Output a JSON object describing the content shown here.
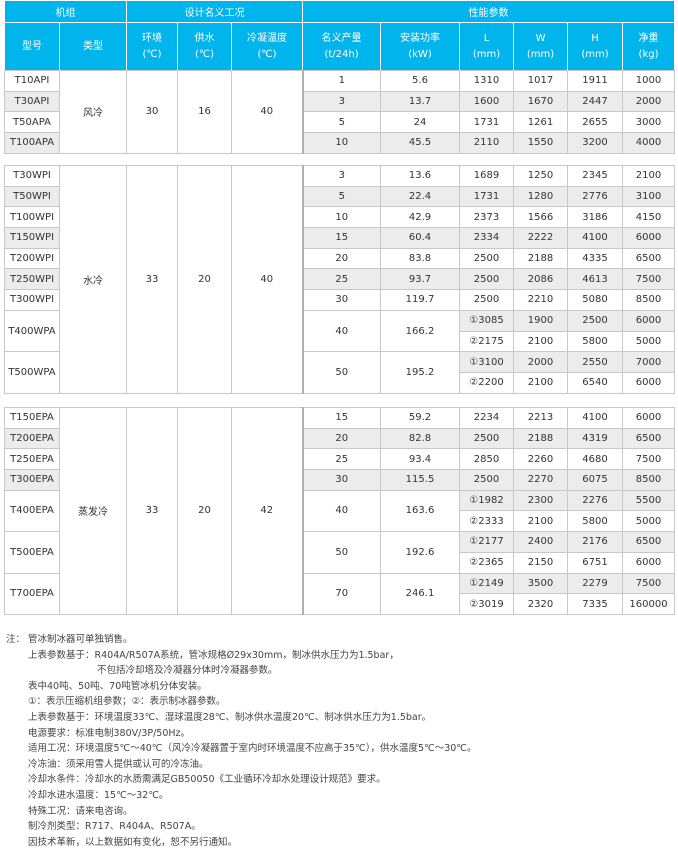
{
  "header": {
    "group_unit": "机组",
    "group_design": "设计名义工况",
    "group_perf": "性能参数",
    "cols": [
      {
        "name": "型号",
        "unit": ""
      },
      {
        "name": "类型",
        "unit": ""
      },
      {
        "name": "环境",
        "unit": "(℃)"
      },
      {
        "name": "供水",
        "unit": "(℃)"
      },
      {
        "name": "冷凝温度",
        "unit": "(℃)"
      },
      {
        "name": "名义产量",
        "unit": "(t/24h)"
      },
      {
        "name": "安装功率",
        "unit": "(kW)"
      },
      {
        "name": "L",
        "unit": "(mm)"
      },
      {
        "name": "W",
        "unit": "(mm)"
      },
      {
        "name": "H",
        "unit": "(mm)"
      },
      {
        "name": "净重",
        "unit": "(kg)"
      }
    ]
  },
  "sections": [
    {
      "type": "风冷",
      "ambient": "30",
      "supply": "16",
      "condense": "40",
      "rows": [
        {
          "model": "T10API",
          "capacity": "1",
          "power": "5.6",
          "sub": [
            [
              "1310",
              "1017",
              "1911",
              "1000"
            ]
          ]
        },
        {
          "model": "T30API",
          "capacity": "3",
          "power": "13.7",
          "sub": [
            [
              "1600",
              "1670",
              "2447",
              "2000"
            ]
          ]
        },
        {
          "model": "T50APA",
          "capacity": "5",
          "power": "24",
          "sub": [
            [
              "1731",
              "1261",
              "2655",
              "3000"
            ]
          ]
        },
        {
          "model": "T100APA",
          "capacity": "10",
          "power": "45.5",
          "sub": [
            [
              "2110",
              "1550",
              "3200",
              "4000"
            ]
          ]
        }
      ]
    },
    {
      "type": "水冷",
      "ambient": "33",
      "supply": "20",
      "condense": "40",
      "rows": [
        {
          "model": "T30WPI",
          "capacity": "3",
          "power": "13.6",
          "sub": [
            [
              "1689",
              "1250",
              "2345",
              "2100"
            ]
          ]
        },
        {
          "model": "T50WPI",
          "capacity": "5",
          "power": "22.4",
          "sub": [
            [
              "1731",
              "1280",
              "2776",
              "3100"
            ]
          ]
        },
        {
          "model": "T100WPI",
          "capacity": "10",
          "power": "42.9",
          "sub": [
            [
              "2373",
              "1566",
              "3186",
              "4150"
            ]
          ]
        },
        {
          "model": "T150WPI",
          "capacity": "15",
          "power": "60.4",
          "sub": [
            [
              "2334",
              "2222",
              "4100",
              "6000"
            ]
          ]
        },
        {
          "model": "T200WPI",
          "capacity": "20",
          "power": "83.8",
          "sub": [
            [
              "2500",
              "2188",
              "4335",
              "6500"
            ]
          ]
        },
        {
          "model": "T250WPI",
          "capacity": "25",
          "power": "93.7",
          "sub": [
            [
              "2500",
              "2086",
              "4613",
              "7500"
            ]
          ]
        },
        {
          "model": "T300WPI",
          "capacity": "30",
          "power": "119.7",
          "sub": [
            [
              "2500",
              "2210",
              "5080",
              "8500"
            ]
          ]
        },
        {
          "model": "T400WPA",
          "capacity": "40",
          "power": "166.2",
          "sub": [
            [
              "①3085",
              "1900",
              "2500",
              "6000"
            ],
            [
              "②2175",
              "2100",
              "5800",
              "5000"
            ]
          ]
        },
        {
          "model": "T500WPA",
          "capacity": "50",
          "power": "195.2",
          "sub": [
            [
              "①3100",
              "2000",
              "2550",
              "7000"
            ],
            [
              "②2200",
              "2100",
              "6540",
              "6000"
            ]
          ]
        }
      ]
    },
    {
      "type": "蒸发冷",
      "ambient": "33",
      "supply": "20",
      "condense": "42",
      "rows": [
        {
          "model": "T150EPA",
          "capacity": "15",
          "power": "59.2",
          "sub": [
            [
              "2234",
              "2213",
              "4100",
              "6000"
            ]
          ]
        },
        {
          "model": "T200EPA",
          "capacity": "20",
          "power": "82.8",
          "sub": [
            [
              "2500",
              "2188",
              "4319",
              "6500"
            ]
          ]
        },
        {
          "model": "T250EPA",
          "capacity": "25",
          "power": "93.4",
          "sub": [
            [
              "2850",
              "2260",
              "4680",
              "7500"
            ]
          ]
        },
        {
          "model": "T300EPA",
          "capacity": "30",
          "power": "115.5",
          "sub": [
            [
              "2500",
              "2270",
              "6075",
              "8500"
            ]
          ]
        },
        {
          "model": "T400EPA",
          "capacity": "40",
          "power": "163.6",
          "sub": [
            [
              "①1982",
              "2300",
              "2276",
              "5500"
            ],
            [
              "②2333",
              "2100",
              "5800",
              "5000"
            ]
          ]
        },
        {
          "model": "T500EPA",
          "capacity": "50",
          "power": "192.6",
          "sub": [
            [
              "①2177",
              "2400",
              "2176",
              "6500"
            ],
            [
              "②2365",
              "2150",
              "6751",
              "6000"
            ]
          ]
        },
        {
          "model": "T700EPA",
          "capacity": "70",
          "power": "246.1",
          "sub": [
            [
              "①2149",
              "3500",
              "2279",
              "7500"
            ],
            [
              "②3019",
              "2320",
              "7335",
              "160000"
            ]
          ]
        }
      ]
    }
  ],
  "notes": {
    "label": "注：",
    "lines": [
      "管冰制冰器可单独销售。",
      "上表参数基于：R404A/R507A系统，管冰规格Ø29x30mm，制冰供水压力为1.5bar，",
      "不包括冷却塔及冷凝器分体时冷凝器参数。",
      "表中40吨、50吨、70吨管冰机分体安装。",
      "①：表示压缩机组参数；②：表示制冰器参数。",
      "上表参数基于：环境温度33℃、湿球温度28℃、制冰供水温度20℃、制冰供水压力为1.5bar。",
      "电源要求：标准电制380V/3P/50Hz。",
      "适用工况：环境温度5℃～40℃（风冷冷凝器置于室内时环境温度不应高于35℃），供水温度5℃～30℃。",
      "冷冻油：须采用雪人提供或认可的冷冻油。",
      "冷却水条件：冷却水的水质需满足GB50050《工业循环冷却水处理设计规范》要求。",
      "冷却水进水温度：15℃～32℃。",
      "特殊工况：请来电咨询。",
      "制冷剂类型：R717、R404A、R507A。",
      "因技术革新，以上数据如有变化，恕不另行通知。"
    ]
  },
  "colors": {
    "header_bg": "#00b4ec",
    "stripe": "#ececec",
    "border": "#c8c8c8"
  }
}
